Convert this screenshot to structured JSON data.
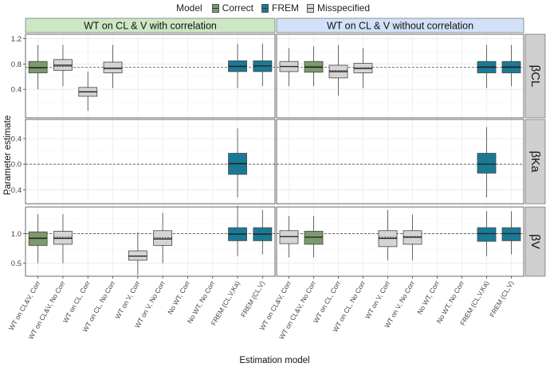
{
  "legend": {
    "title": "Model",
    "items": [
      {
        "label": "Correct",
        "color": "#7a9a6c"
      },
      {
        "label": "FREM",
        "color": "#1a7a96"
      },
      {
        "label": "Misspecified",
        "color": "#d4d4d4"
      }
    ]
  },
  "chart_data": {
    "type": "boxplot",
    "xlabel": "Estimation model",
    "ylabel": "Parameter estimate",
    "columns": [
      "WT on CL & V with correlation",
      "WT on CL & V without correlation"
    ],
    "rows": [
      {
        "strip": "βCL",
        "ticks": [
          0.4,
          0.8,
          1.2
        ],
        "tick_labels": [
          "0.4",
          "0.8",
          "1.2"
        ],
        "ylim": [
          -0.05,
          1.27
        ],
        "reference": 0.75
      },
      {
        "strip": "βKa",
        "ticks": [
          -0.4,
          0.0,
          0.4
        ],
        "tick_labels": [
          "-0.4",
          "0.0",
          "0.4"
        ],
        "ylim": [
          -0.62,
          0.7
        ],
        "reference": 0.0
      },
      {
        "strip": "βV",
        "ticks": [
          0.5,
          1.0
        ],
        "tick_labels": [
          "0.5",
          "1.0"
        ],
        "ylim": [
          0.28,
          1.45
        ],
        "reference": 1.0
      }
    ],
    "categories": [
      "WT on CL&V, Corr",
      "WT on CL&V, No Corr",
      "WT on CL, Corr",
      "WT on CL, No Corr",
      "WT on V, Corr",
      "WT on V, No Corr",
      "No WT, Corr",
      "No WT, No Corr",
      "FREM (CL,V,Ka)",
      "FREM (CL,V)"
    ],
    "panels": [
      {
        "col": 0,
        "row": 0,
        "boxes": [
          {
            "x": 0,
            "model": "Correct",
            "whislo": 0.4,
            "q1": 0.66,
            "med": 0.74,
            "q3": 0.84,
            "whishi": 1.1,
            "mean": 0.75
          },
          {
            "x": 1,
            "model": "Misspecified",
            "whislo": 0.45,
            "q1": 0.7,
            "med": 0.78,
            "q3": 0.87,
            "whishi": 1.1,
            "mean": 0.76
          },
          {
            "x": 2,
            "model": "Misspecified",
            "whislo": 0.06,
            "q1": 0.29,
            "med": 0.36,
            "q3": 0.43,
            "whishi": 0.68,
            "mean": 0.36
          },
          {
            "x": 3,
            "model": "Misspecified",
            "whislo": 0.42,
            "q1": 0.66,
            "med": 0.73,
            "q3": 0.83,
            "whishi": 1.1,
            "mean": 0.74
          },
          {
            "x": 8,
            "model": "FREM",
            "whislo": 0.42,
            "q1": 0.68,
            "med": 0.76,
            "q3": 0.85,
            "whishi": 1.12,
            "mean": 0.77
          },
          {
            "x": 9,
            "model": "FREM",
            "whislo": 0.45,
            "q1": 0.68,
            "med": 0.77,
            "q3": 0.85,
            "whishi": 1.12,
            "mean": 0.77
          }
        ]
      },
      {
        "col": 1,
        "row": 0,
        "boxes": [
          {
            "x": 0,
            "model": "Misspecified",
            "whislo": 0.45,
            "q1": 0.68,
            "med": 0.76,
            "q3": 0.84,
            "whishi": 1.05,
            "mean": 0.76
          },
          {
            "x": 1,
            "model": "Correct",
            "whislo": 0.45,
            "q1": 0.67,
            "med": 0.75,
            "q3": 0.84,
            "whishi": 1.08,
            "mean": 0.76
          },
          {
            "x": 2,
            "model": "Misspecified",
            "whislo": 0.3,
            "q1": 0.58,
            "med": 0.68,
            "q3": 0.78,
            "whishi": 1.1,
            "mean": 0.7
          },
          {
            "x": 3,
            "model": "Misspecified",
            "whislo": 0.42,
            "q1": 0.66,
            "med": 0.73,
            "q3": 0.81,
            "whishi": 1.05,
            "mean": 0.74
          },
          {
            "x": 8,
            "model": "FREM",
            "whislo": 0.42,
            "q1": 0.66,
            "med": 0.75,
            "q3": 0.84,
            "whishi": 1.1,
            "mean": 0.76
          },
          {
            "x": 9,
            "model": "FREM",
            "whislo": 0.45,
            "q1": 0.66,
            "med": 0.75,
            "q3": 0.84,
            "whishi": 1.1,
            "mean": 0.76
          }
        ]
      },
      {
        "col": 0,
        "row": 1,
        "boxes": [
          {
            "x": 8,
            "model": "FREM",
            "whislo": -0.52,
            "q1": -0.16,
            "med": 0.01,
            "q3": 0.17,
            "whishi": 0.56,
            "mean": 0.0
          }
        ]
      },
      {
        "col": 1,
        "row": 1,
        "boxes": [
          {
            "x": 8,
            "model": "FREM",
            "whislo": -0.52,
            "q1": -0.14,
            "med": 0.0,
            "q3": 0.17,
            "whishi": 0.58,
            "mean": 0.0
          }
        ]
      },
      {
        "col": 0,
        "row": 2,
        "boxes": [
          {
            "x": 0,
            "model": "Correct",
            "whislo": 0.5,
            "q1": 0.8,
            "med": 0.92,
            "q3": 1.03,
            "whishi": 1.33,
            "mean": 0.93
          },
          {
            "x": 1,
            "model": "Misspecified",
            "whislo": 0.5,
            "q1": 0.82,
            "med": 0.92,
            "q3": 1.04,
            "whishi": 1.33,
            "mean": 0.94
          },
          {
            "x": 4,
            "model": "Misspecified",
            "whislo": 0.3,
            "q1": 0.55,
            "med": 0.62,
            "q3": 0.71,
            "whishi": 1.02,
            "mean": 0.62
          },
          {
            "x": 5,
            "model": "Misspecified",
            "whislo": 0.5,
            "q1": 0.8,
            "med": 0.91,
            "q3": 1.05,
            "whishi": 1.35,
            "mean": 0.93
          },
          {
            "x": 8,
            "model": "FREM",
            "whislo": 0.62,
            "q1": 0.88,
            "med": 0.99,
            "q3": 1.1,
            "whishi": 1.47,
            "mean": 1.0
          },
          {
            "x": 9,
            "model": "FREM",
            "whislo": 0.65,
            "q1": 0.88,
            "med": 0.99,
            "q3": 1.1,
            "whishi": 1.4,
            "mean": 1.0
          }
        ]
      },
      {
        "col": 1,
        "row": 2,
        "boxes": [
          {
            "x": 0,
            "model": "Misspecified",
            "whislo": 0.6,
            "q1": 0.83,
            "med": 0.95,
            "q3": 1.05,
            "whishi": 1.3,
            "mean": 0.95
          },
          {
            "x": 1,
            "model": "Correct",
            "whislo": 0.6,
            "q1": 0.82,
            "med": 0.94,
            "q3": 1.04,
            "whishi": 1.3,
            "mean": 0.94
          },
          {
            "x": 4,
            "model": "Misspecified",
            "whislo": 0.55,
            "q1": 0.78,
            "med": 0.92,
            "q3": 1.05,
            "whishi": 1.4,
            "mean": 0.94
          },
          {
            "x": 5,
            "model": "Misspecified",
            "whislo": 0.55,
            "q1": 0.82,
            "med": 0.94,
            "q3": 1.05,
            "whishi": 1.32,
            "mean": 0.95
          },
          {
            "x": 8,
            "model": "FREM",
            "whislo": 0.62,
            "q1": 0.87,
            "med": 1.0,
            "q3": 1.1,
            "whishi": 1.38,
            "mean": 1.0
          },
          {
            "x": 9,
            "model": "FREM",
            "whislo": 0.65,
            "q1": 0.88,
            "med": 1.0,
            "q3": 1.1,
            "whishi": 1.38,
            "mean": 1.0
          }
        ]
      }
    ]
  }
}
